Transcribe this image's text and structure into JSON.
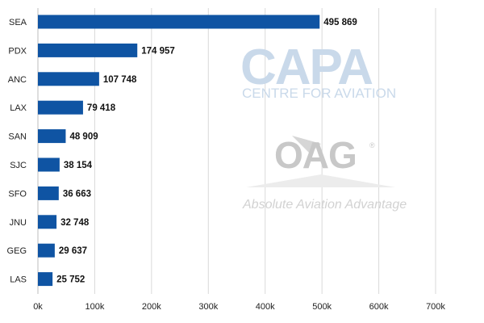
{
  "chart_data": {
    "type": "bar",
    "orientation": "horizontal",
    "categories": [
      "SEA",
      "PDX",
      "ANC",
      "LAX",
      "SAN",
      "SJC",
      "SFO",
      "JNU",
      "GEG",
      "LAS"
    ],
    "values": [
      495869,
      174957,
      107748,
      79418,
      48909,
      38154,
      36663,
      32748,
      29637,
      25752
    ],
    "value_labels": [
      "495 869",
      "174 957",
      "107 748",
      "79 418",
      "48 909",
      "38 154",
      "36 663",
      "32 748",
      "29 637",
      "25 752"
    ],
    "x_ticks": [
      0,
      100000,
      200000,
      300000,
      400000,
      500000,
      600000,
      700000
    ],
    "x_tick_labels": [
      "0k",
      "100k",
      "200k",
      "300k",
      "400k",
      "500k",
      "600k",
      "700k"
    ],
    "xlim": [
      0,
      700000
    ],
    "grid": true,
    "legend": "none",
    "bar_color": "#0f54a3",
    "title": "",
    "xlabel": "",
    "ylabel": ""
  },
  "watermarks": {
    "capa_logo": "CAPA",
    "capa_sub": "CENTRE FOR AVIATION",
    "oag_logo": "OAG",
    "oag_reg": "®",
    "oag_tagline": "Absolute Aviation Advantage",
    "capa_color": "#c9d9ea",
    "oag_color": "#c8c8c8"
  }
}
